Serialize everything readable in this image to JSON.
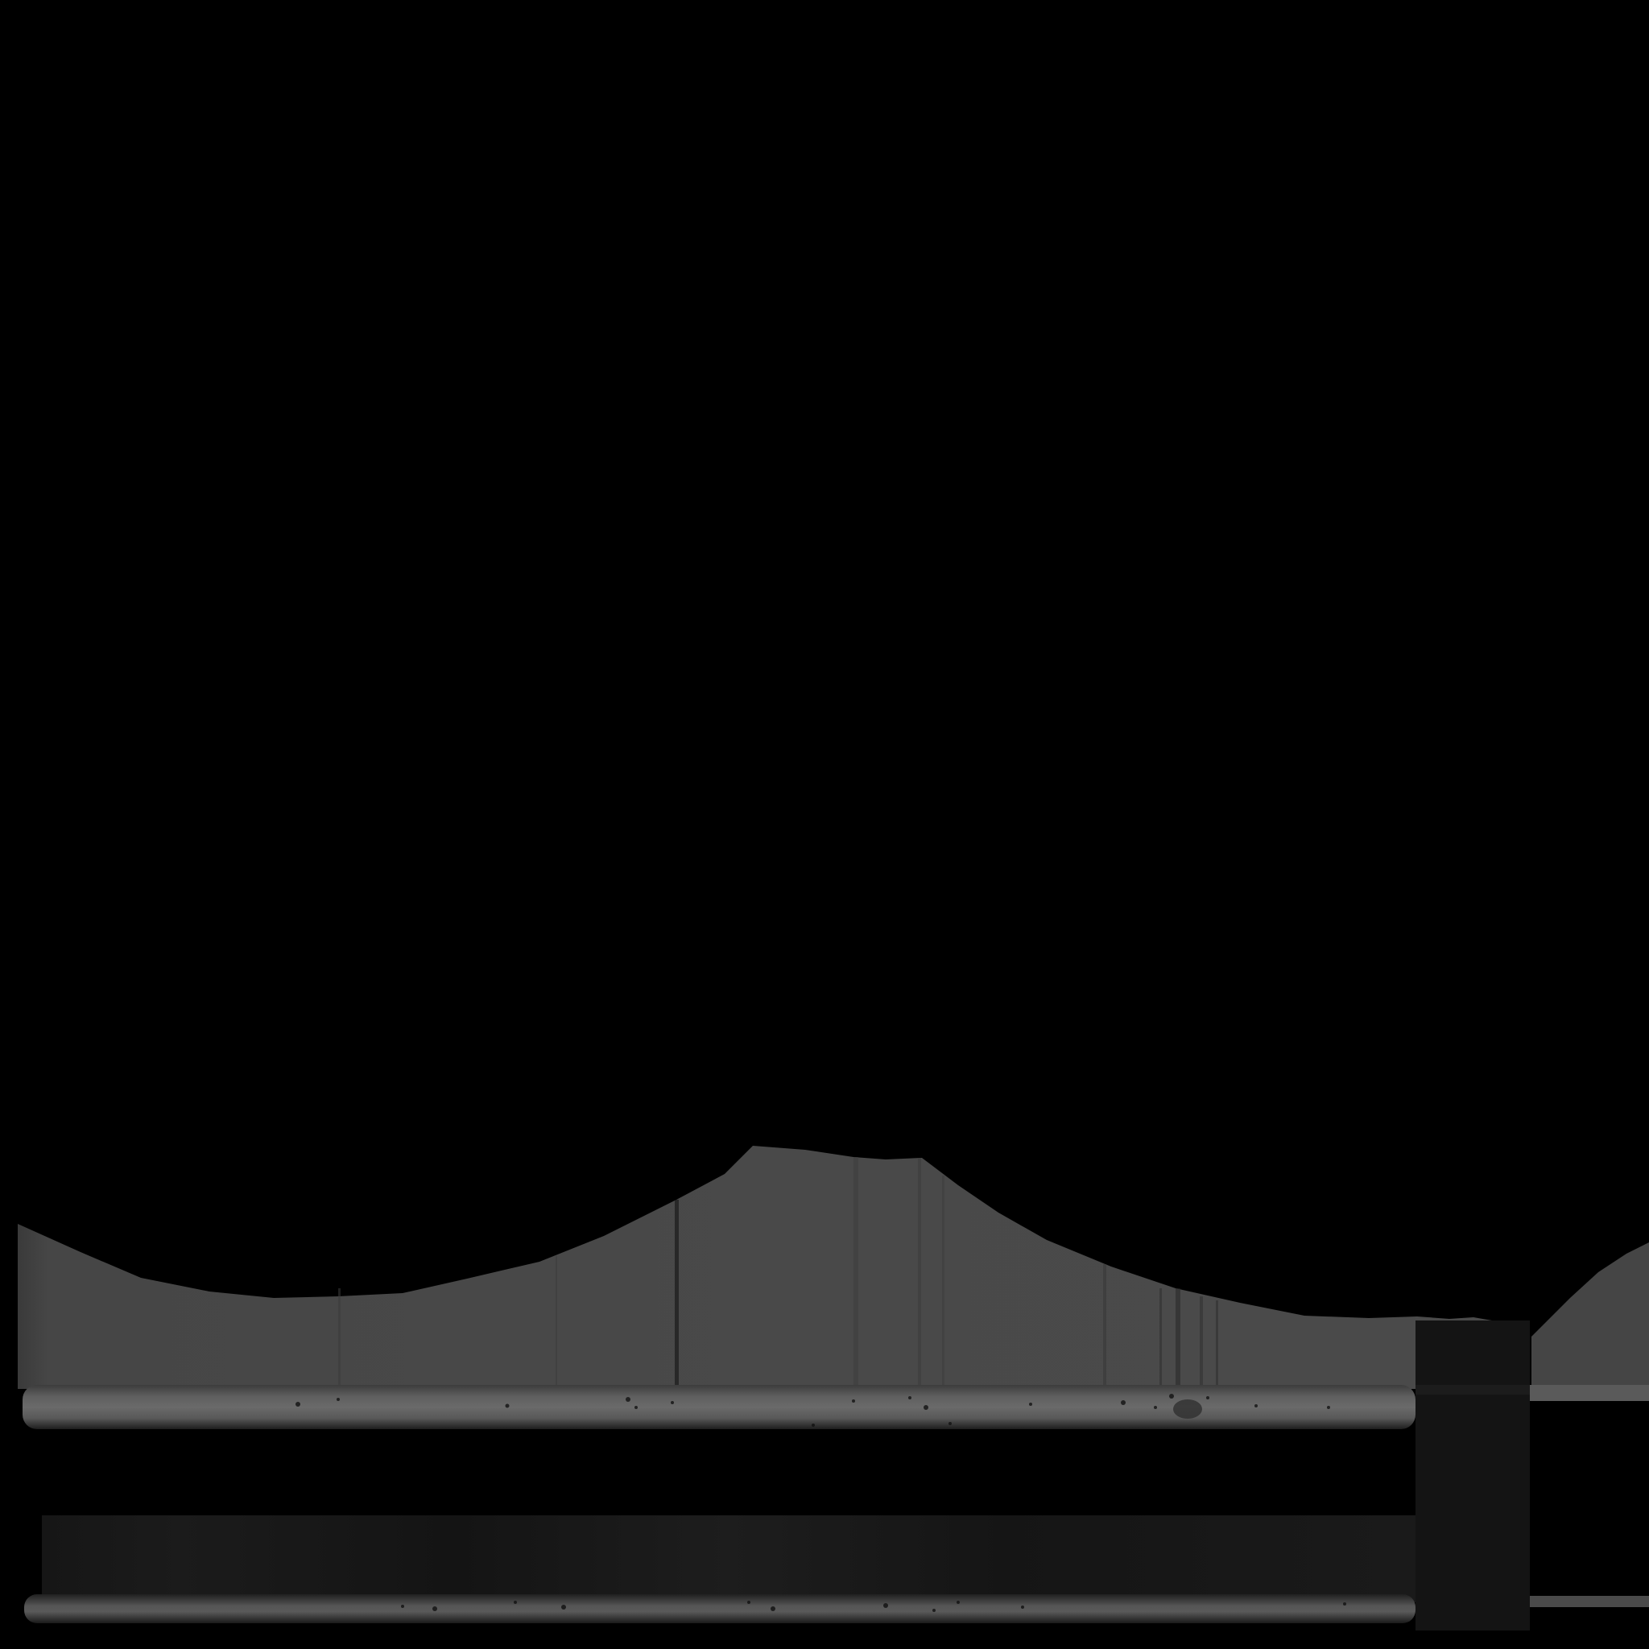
{
  "image": {
    "description_kind": "grayscale texture map",
    "background_color": "#000000",
    "ridge_color": "#474747",
    "bright_band_color": "#686868",
    "dark_block_color": "#151515",
    "speckle_color": "#111111"
  }
}
